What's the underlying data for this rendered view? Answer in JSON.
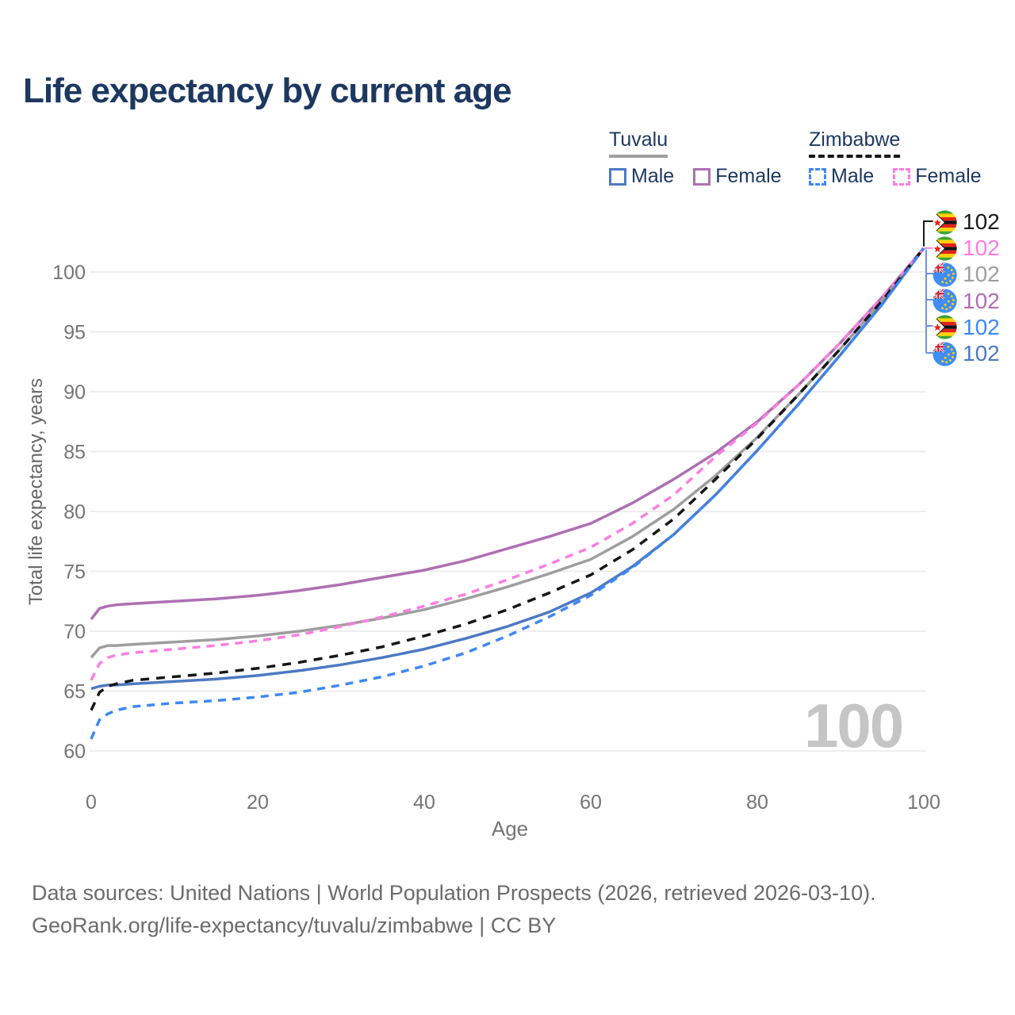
{
  "title": "Life expectancy by current age",
  "legend": {
    "groups": [
      {
        "title": "Tuvalu",
        "line_style": "solid",
        "underline_color": "#9e9e9e",
        "items": [
          {
            "label": "Male",
            "color": "#4d79c2"
          },
          {
            "label": "Female",
            "color": "#ae6fb3"
          }
        ]
      },
      {
        "title": "Zimbabwe",
        "line_style": "dashed",
        "underline_color": "#161616",
        "items": [
          {
            "label": "Male",
            "color": "#3f87f5"
          },
          {
            "label": "Female",
            "color": "#fc7ee0"
          }
        ]
      }
    ]
  },
  "watermark": "100",
  "footer": {
    "line1": "Data sources: United Nations | World Population Prospects (2026, retrieved 2026-03-10).",
    "line2": "GeoRank.org/life-expectancy/tuvalu/zimbabwe | CC BY"
  },
  "chart_data": {
    "type": "line",
    "title": "Life expectancy by current age",
    "xlabel": "Age",
    "ylabel": "Total life expectancy, years",
    "xlim": [
      0,
      100
    ],
    "ylim": [
      60,
      103
    ],
    "xticks": [
      0,
      20,
      40,
      60,
      80,
      100
    ],
    "yticks": [
      60,
      65,
      70,
      75,
      80,
      85,
      90,
      95,
      100
    ],
    "grid": "horizontal",
    "legend_position": "top-right",
    "x": [
      0,
      1,
      2,
      3,
      5,
      10,
      15,
      20,
      25,
      30,
      35,
      40,
      45,
      50,
      55,
      60,
      65,
      70,
      75,
      80,
      85,
      90,
      95,
      100
    ],
    "series": [
      {
        "name": "Tuvalu Female",
        "color": "#ae6fb3",
        "dash": null,
        "values": [
          71.0,
          71.9,
          72.1,
          72.2,
          72.3,
          72.5,
          72.7,
          73.0,
          73.4,
          73.9,
          74.5,
          75.1,
          75.9,
          76.9,
          77.9,
          79.0,
          80.7,
          82.7,
          84.9,
          87.5,
          90.6,
          94.1,
          97.9,
          102
        ]
      },
      {
        "name": "Tuvalu Both sexes",
        "color": "#9e9e9e",
        "dash": null,
        "values": [
          67.8,
          68.6,
          68.8,
          68.8,
          68.9,
          69.1,
          69.3,
          69.6,
          70.0,
          70.5,
          71.1,
          71.8,
          72.7,
          73.7,
          74.8,
          76.0,
          77.9,
          80.2,
          83.0,
          86.2,
          89.8,
          93.6,
          97.6,
          102
        ]
      },
      {
        "name": "Tuvalu Male",
        "color": "#4d79c2",
        "dash": null,
        "values": [
          65.2,
          65.4,
          65.5,
          65.5,
          65.6,
          65.8,
          66.0,
          66.3,
          66.7,
          67.2,
          67.8,
          68.5,
          69.4,
          70.4,
          71.6,
          73.2,
          75.4,
          78.1,
          81.4,
          85.1,
          89.0,
          93.1,
          97.3,
          102
        ]
      },
      {
        "name": "Zimbabwe Female",
        "color": "#fc7ee0",
        "dash": "10 8",
        "values": [
          65.9,
          67.3,
          67.8,
          68.0,
          68.2,
          68.5,
          68.8,
          69.2,
          69.7,
          70.4,
          71.2,
          72.1,
          73.1,
          74.3,
          75.6,
          77.0,
          79.0,
          81.4,
          84.6,
          87.4,
          90.6,
          94.1,
          97.9,
          102
        ]
      },
      {
        "name": "Zimbabwe Both sexes",
        "color": "#161616",
        "dash": "11 9",
        "values": [
          63.4,
          64.9,
          65.4,
          65.6,
          65.9,
          66.2,
          66.5,
          66.9,
          67.4,
          68.0,
          68.7,
          69.6,
          70.6,
          71.8,
          73.2,
          74.7,
          76.8,
          79.4,
          82.7,
          86.1,
          89.8,
          93.6,
          97.6,
          102
        ]
      },
      {
        "name": "Zimbabwe Male",
        "color": "#3f87f5",
        "dash": "10 8",
        "values": [
          61.0,
          62.6,
          63.1,
          63.4,
          63.7,
          64.0,
          64.2,
          64.5,
          64.9,
          65.5,
          66.2,
          67.1,
          68.2,
          69.6,
          71.2,
          73.0,
          75.3,
          78.1,
          81.4,
          85.1,
          89.0,
          93.1,
          97.3,
          102
        ]
      }
    ],
    "end_labels": [
      {
        "flag": "zimbabwe",
        "value": "102",
        "color": "#1a1a1a"
      },
      {
        "flag": "zimbabwe",
        "value": "102",
        "color": "#fc7ee0"
      },
      {
        "flag": "tuvalu",
        "value": "102",
        "color": "#9e9e9e"
      },
      {
        "flag": "tuvalu",
        "value": "102",
        "color": "#ae6fb3"
      },
      {
        "flag": "zimbabwe",
        "value": "102",
        "color": "#3f87f5"
      },
      {
        "flag": "tuvalu",
        "value": "102",
        "color": "#4d79c2"
      }
    ]
  }
}
